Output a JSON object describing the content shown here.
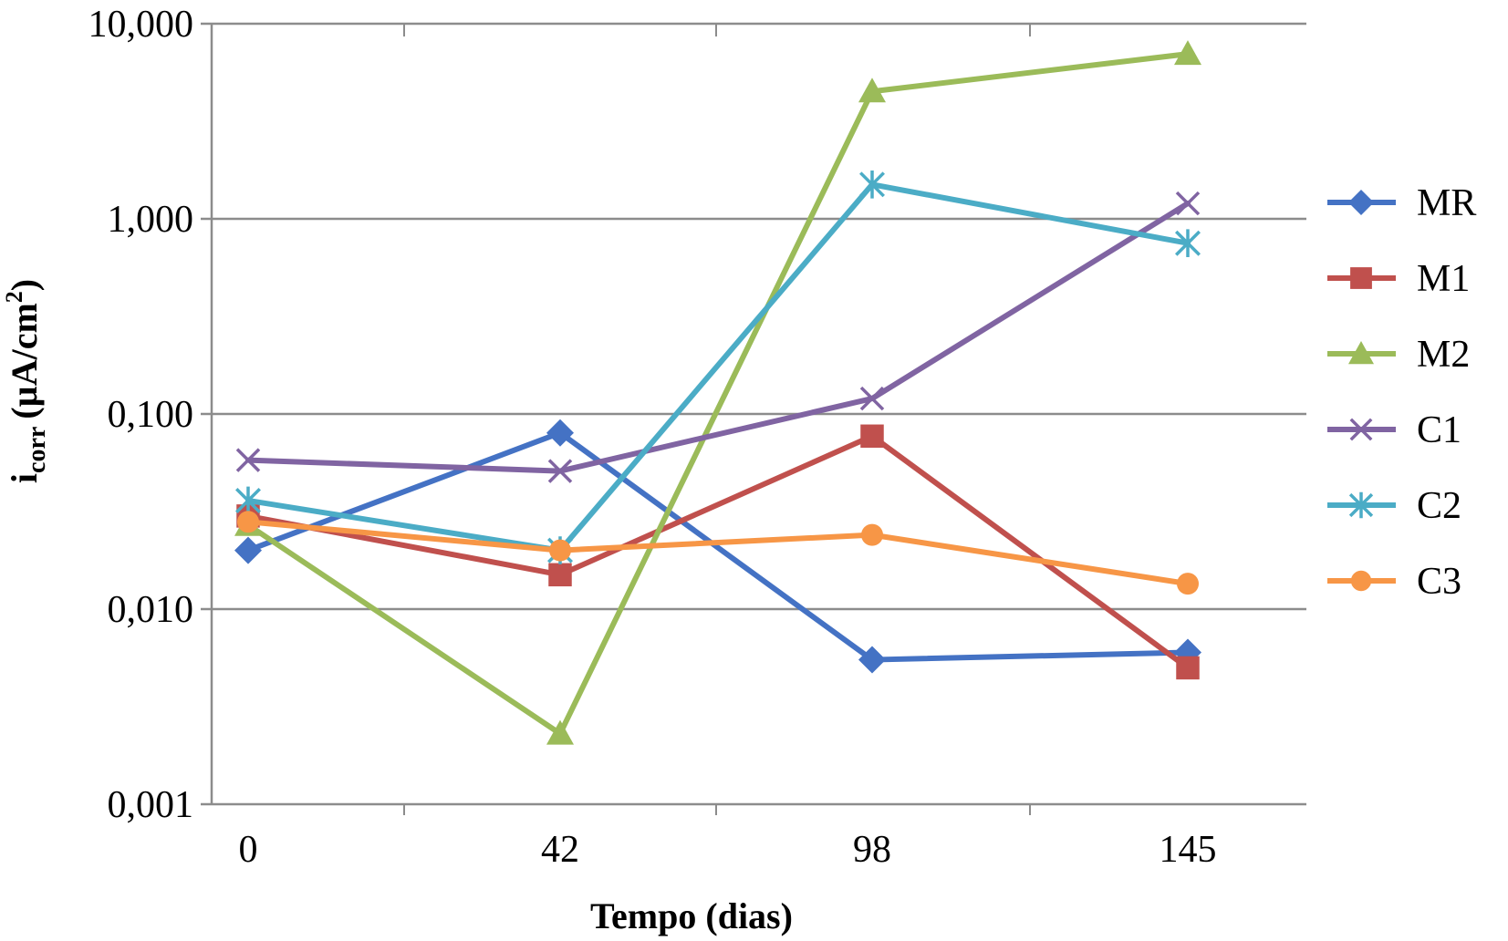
{
  "chart_data": {
    "type": "line",
    "xlabel": "Tempo (dias)",
    "ylabel": {
      "main": "i",
      "sub": "corr",
      "unit_prefix": "(µA/cm",
      "unit_sup": "2",
      "unit_suffix": ")"
    },
    "categories": [
      "0",
      "42",
      "98",
      "145"
    ],
    "y_scale": "log",
    "ylim": [
      0.001,
      10
    ],
    "y_ticks": [
      {
        "value": 0.001,
        "label": "0,001"
      },
      {
        "value": 0.01,
        "label": "0,010"
      },
      {
        "value": 0.1,
        "label": "0,100"
      },
      {
        "value": 1,
        "label": "1,000"
      },
      {
        "value": 10,
        "label": "10,000"
      }
    ],
    "grid": true,
    "legend_position": "right",
    "series": [
      {
        "name": "MR",
        "color": "#4472C4",
        "marker": "diamond",
        "values": [
          0.02,
          0.08,
          0.0055,
          0.006
        ]
      },
      {
        "name": "M1",
        "color": "#C0504D",
        "marker": "square",
        "values": [
          0.03,
          0.015,
          0.077,
          0.005
        ]
      },
      {
        "name": "M2",
        "color": "#9BBB59",
        "marker": "triangle",
        "values": [
          0.027,
          0.0023,
          4.5,
          7.0
        ]
      },
      {
        "name": "C1",
        "color": "#8064A2",
        "marker": "x",
        "values": [
          0.058,
          0.051,
          0.12,
          1.2
        ]
      },
      {
        "name": "C2",
        "color": "#4BACC6",
        "marker": "star",
        "values": [
          0.036,
          0.02,
          1.5,
          0.75
        ]
      },
      {
        "name": "C3",
        "color": "#F79646",
        "marker": "circle",
        "values": [
          0.028,
          0.02,
          0.024,
          0.0135
        ]
      }
    ]
  }
}
